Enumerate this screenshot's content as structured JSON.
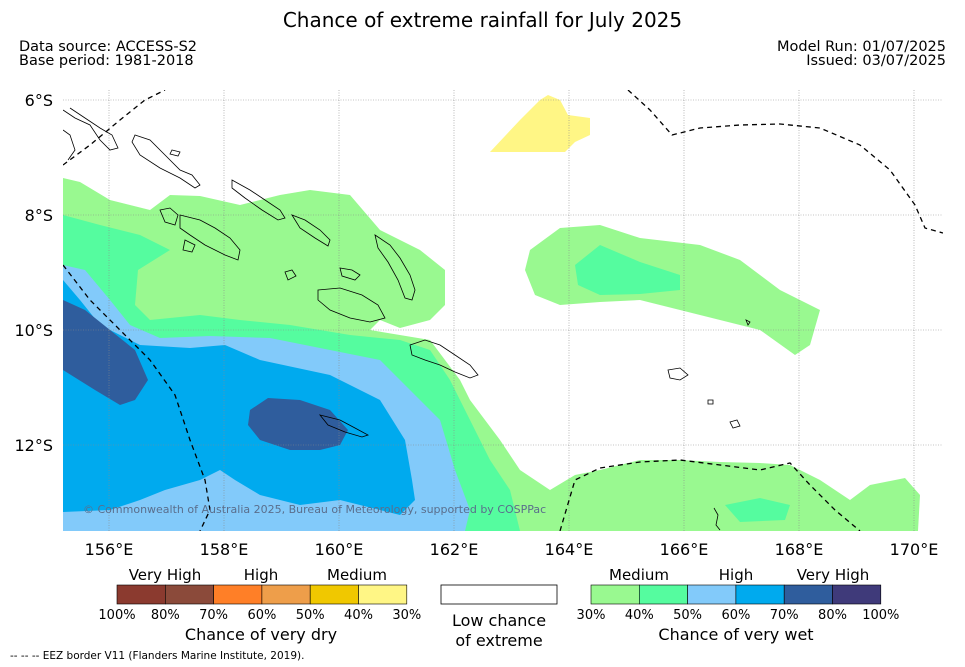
{
  "title": "Chance of extreme rainfall for July 2025",
  "meta": {
    "data_source": "Data source: ACCESS-S2",
    "base_period": "Base period: 1981-2018",
    "model_run": "Model Run: 01/07/2025",
    "issued": "Issued: 03/07/2025"
  },
  "map": {
    "lat_labels": [
      "6°S",
      "8°S",
      "10°S",
      "12°S"
    ],
    "lon_labels": [
      "156°E",
      "158°E",
      "160°E",
      "162°E",
      "164°E",
      "166°E",
      "168°E",
      "170°E"
    ],
    "copyright": "© Commonwealth of Australia 2025, Bureau of Meteorology, supported by COSPPac",
    "colors": {
      "medium_wet": "#99f990",
      "high_wet_low": "#55fc9f",
      "high_wet": "#82cafa",
      "very_high_wet_low": "#00aaee",
      "very_high_wet": "#2f5d9d",
      "dry_medium": "#fff685",
      "coast": "#000000",
      "eez": "#000000"
    }
  },
  "legend": {
    "dry": {
      "levels": [
        "Very High",
        "High",
        "Medium"
      ],
      "colors": [
        "#8b3a2f",
        "#8b4a3a",
        "#ff7f27",
        "#ee9e4a",
        "#f0c800",
        "#fff685"
      ],
      "ticks": [
        "100%",
        "80%",
        "70%",
        "60%",
        "50%",
        "40%",
        "30%"
      ],
      "caption": "Chance of very dry"
    },
    "low": {
      "caption_line1": "Low chance",
      "caption_line2": "of extreme"
    },
    "wet": {
      "levels": [
        "Medium",
        "High",
        "Very High"
      ],
      "colors": [
        "#99f990",
        "#55fc9f",
        "#82cafa",
        "#00aaee",
        "#2f5d9d",
        "#3f3a7a"
      ],
      "ticks": [
        "30%",
        "40%",
        "50%",
        "60%",
        "70%",
        "80%",
        "100%"
      ],
      "caption": "Chance of very wet"
    }
  },
  "footer": "--  --  -- EEZ border V11 (Flanders Marine Institute, 2019)."
}
